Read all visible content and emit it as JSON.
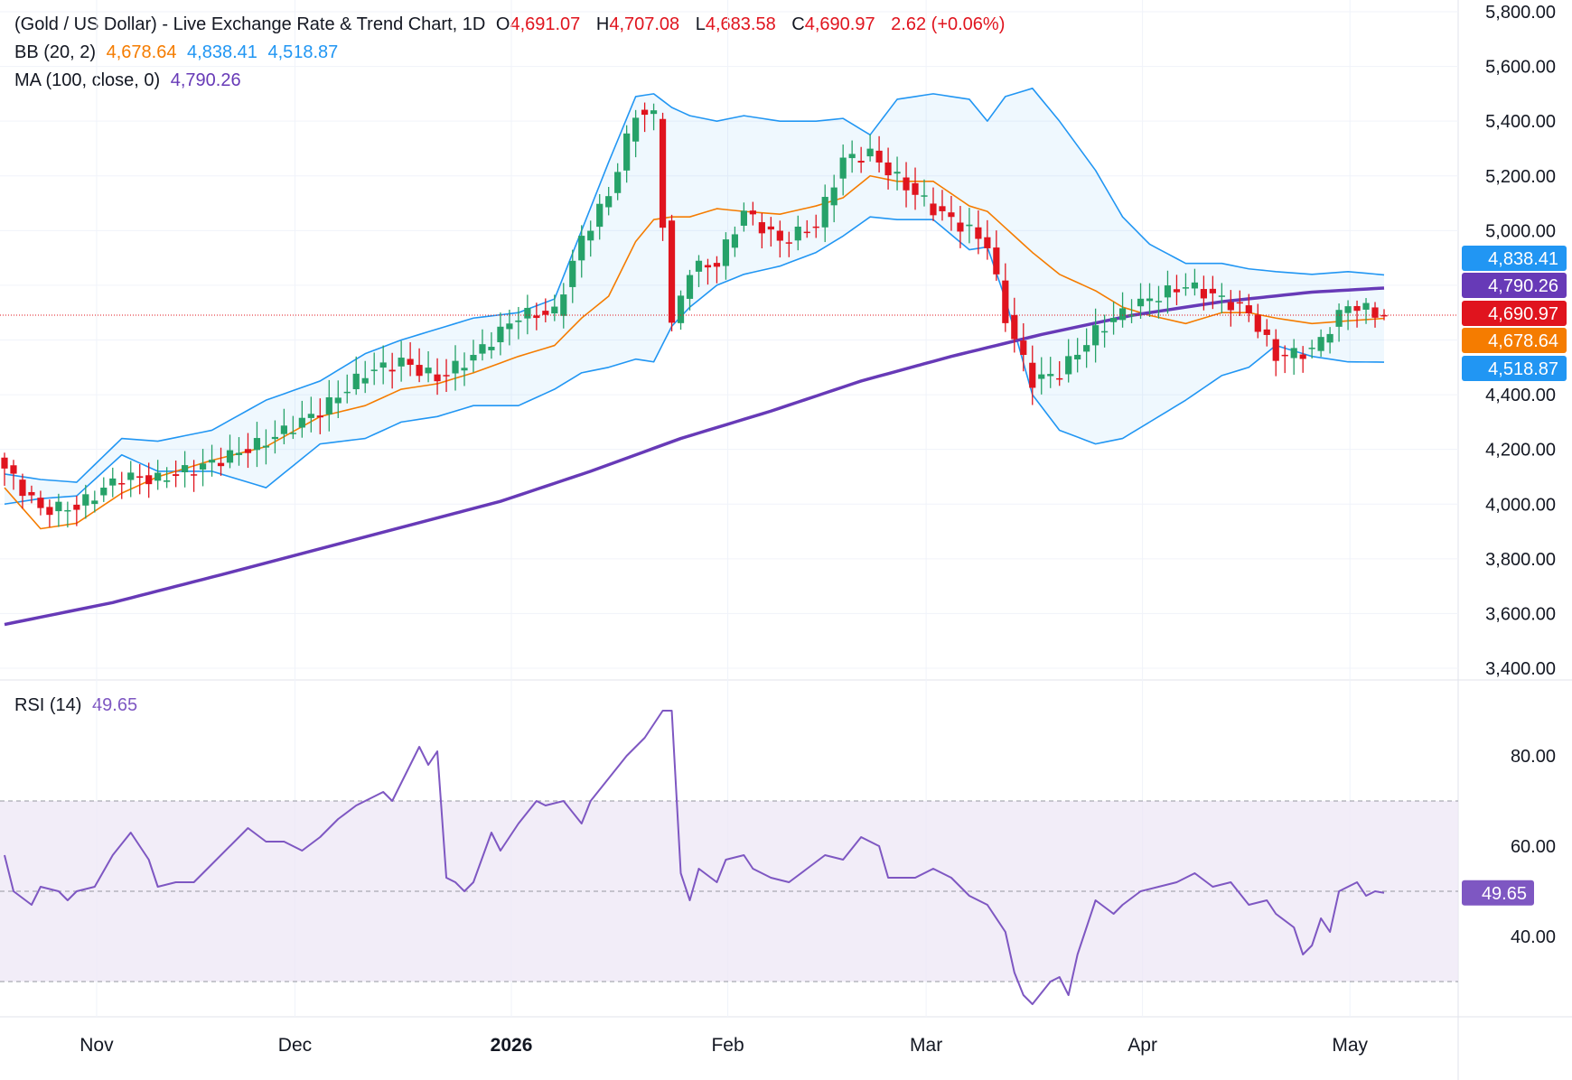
{
  "header": {
    "symbol": "(Gold / US Dollar) - Live Exchange Rate & Trend Chart, 1D",
    "open_label": "O",
    "open": "4,691.07",
    "high_label": "H",
    "high": "4,707.08",
    "low_label": "L",
    "low": "4,683.58",
    "close_label": "C",
    "close": "4,690.97",
    "change": "2.62 (+0.06%)"
  },
  "bb_legend": {
    "label": "BB (20, 2)",
    "basis": "4,678.64",
    "upper": "4,838.41",
    "lower": "4,518.87"
  },
  "ma_legend": {
    "label": "MA (100, close, 0)",
    "value": "4,790.26"
  },
  "rsi_legend": {
    "label": "RSI (14)",
    "value": "49.65"
  },
  "colors": {
    "up": "#26a269",
    "down": "#e0141e",
    "bb_basis": "#f57c00",
    "bb_band": "#2196f3",
    "ma": "#673ab7",
    "rsi": "#7e57c2",
    "rsi_fill": "#ede7f6",
    "last_price": "#e0141e"
  },
  "chart_data": [
    {
      "type": "candlestick",
      "title": "(Gold / US Dollar) - Live Exchange Rate & Trend Chart, 1D",
      "y_ticks": [
        "3,400.00",
        "3,600.00",
        "3,800.00",
        "4,000.00",
        "4,200.00",
        "4,400.00",
        "4,600.00",
        "4,800.00",
        "5,000.00",
        "5,200.00",
        "5,400.00",
        "5,600.00",
        "5,800.00"
      ],
      "y_tick_values": [
        3400,
        3600,
        3800,
        4000,
        4200,
        4400,
        4600,
        4800,
        5000,
        5200,
        5400,
        5600,
        5800
      ],
      "ylim": [
        3390,
        5815
      ],
      "x_ticks": [
        {
          "label": "Nov",
          "day": 4
        },
        {
          "label": "Dec",
          "day": 26
        },
        {
          "label": "2026",
          "day": 50
        },
        {
          "label": "Feb",
          "day": 74
        },
        {
          "label": "Mar",
          "day": 96
        },
        {
          "label": "Apr",
          "day": 120
        },
        {
          "label": "May",
          "day": 143
        }
      ],
      "x_range_days": [
        0,
        158
      ],
      "badges": [
        {
          "label": "4,838.41",
          "value": 4838.41,
          "color": "#2196f3"
        },
        {
          "label": "4,790.26",
          "value": 4790.26,
          "color": "#673ab7"
        },
        {
          "label": "4,690.97",
          "value": 4690.97,
          "color": "#e0141e"
        },
        {
          "label": "4,678.64",
          "value": 4678.64,
          "color": "#f57c00"
        },
        {
          "label": "4,518.87",
          "value": 4518.87,
          "color": "#2196f3"
        }
      ],
      "last_price": 4690.97,
      "anchors": [
        [
          0,
          4170,
          4130,
          4060,
          4110,
          4000
        ],
        [
          4,
          4000,
          3980,
          3910,
          4090,
          4020
        ],
        [
          8,
          4000,
          3990,
          3930,
          4080,
          4030
        ],
        [
          13,
          4200,
          4100,
          4040,
          4240,
          4180
        ],
        [
          17,
          4030,
          4090,
          4100,
          4230,
          4120
        ],
        [
          23,
          4180,
          4150,
          4160,
          4270,
          4120
        ],
        [
          29,
          4170,
          4230,
          4210,
          4380,
          4060
        ],
        [
          35,
          4270,
          4340,
          4320,
          4450,
          4220
        ],
        [
          40,
          4450,
          4480,
          4360,
          4550,
          4240
        ],
        [
          44,
          4550,
          4520,
          4420,
          4600,
          4300
        ],
        [
          48,
          4450,
          4460,
          4440,
          4640,
          4320
        ],
        [
          52,
          4500,
          4540,
          4480,
          4680,
          4360
        ],
        [
          57,
          4600,
          4690,
          4540,
          4700,
          4360
        ],
        [
          61,
          4660,
          4700,
          4580,
          4750,
          4420
        ],
        [
          64,
          4830,
          4970,
          4680,
          5000,
          4480
        ],
        [
          67,
          4980,
          5130,
          4760,
          5250,
          4500
        ],
        [
          70,
          5300,
          5430,
          4960,
          5490,
          4530
        ],
        [
          72,
          5400,
          5420,
          5040,
          5500,
          4520
        ],
        [
          74,
          4650,
          4650,
          5050,
          5450,
          4650
        ],
        [
          76,
          4850,
          4860,
          5050,
          5420,
          4720
        ],
        [
          79,
          4850,
          4880,
          5080,
          5400,
          4800
        ],
        [
          82,
          5060,
          5070,
          5070,
          5420,
          4840
        ],
        [
          86,
          5010,
          4960,
          5060,
          5400,
          4870
        ],
        [
          90,
          4990,
          5020,
          5090,
          5400,
          4920
        ],
        [
          93,
          5200,
          5260,
          5120,
          5410,
          4980
        ],
        [
          96,
          5290,
          5280,
          5200,
          5350,
          5050
        ],
        [
          99,
          5100,
          5190,
          5180,
          5480,
          5040
        ],
        [
          103,
          5220,
          5080,
          5180,
          5500,
          5040
        ],
        [
          107,
          5000,
          5000,
          5090,
          5480,
          4930
        ],
        [
          109,
          4940,
          4950,
          5070,
          5400,
          4940
        ],
        [
          111,
          4650,
          4680,
          5010,
          5490,
          4750
        ],
        [
          114,
          4500,
          4450,
          4920,
          5520,
          4400
        ],
        [
          117,
          4520,
          4480,
          4840,
          5400,
          4270
        ],
        [
          121,
          4640,
          4630,
          4780,
          5220,
          4220
        ],
        [
          124,
          4700,
          4700,
          4720,
          5050,
          4240
        ],
        [
          127,
          4700,
          4750,
          4690,
          4950,
          4300
        ],
        [
          131,
          4780,
          4800,
          4660,
          4880,
          4380
        ],
        [
          135,
          4720,
          4750,
          4700,
          4880,
          4470
        ],
        [
          138,
          4680,
          4700,
          4700,
          4860,
          4500
        ],
        [
          141,
          4560,
          4540,
          4680,
          4850,
          4580
        ],
        [
          145,
          4560,
          4560,
          4660,
          4840,
          4540
        ],
        [
          149,
          4700,
          4730,
          4670,
          4850,
          4520
        ],
        [
          153,
          4690,
          4691,
          4679,
          4838,
          4519
        ]
      ],
      "ma_anchors": [
        [
          0,
          3560
        ],
        [
          12,
          3640
        ],
        [
          25,
          3750
        ],
        [
          40,
          3880
        ],
        [
          55,
          4010
        ],
        [
          65,
          4120
        ],
        [
          75,
          4240
        ],
        [
          85,
          4340
        ],
        [
          95,
          4450
        ],
        [
          105,
          4540
        ],
        [
          115,
          4620
        ],
        [
          125,
          4690
        ],
        [
          135,
          4740
        ],
        [
          145,
          4775
        ],
        [
          153,
          4790
        ]
      ],
      "series": [
        {
          "name": "BB (20, 2)"
        },
        {
          "name": "MA (100, close, 0)"
        }
      ]
    },
    {
      "type": "line",
      "title": "RSI (14)",
      "y_ticks": [
        "40.00",
        "60.00",
        "80.00"
      ],
      "y_tick_values": [
        40,
        60,
        80
      ],
      "ylim": [
        21.5,
        93
      ],
      "bands": [
        30,
        70
      ],
      "midline": 50,
      "current": 49.65,
      "anchors": [
        [
          0,
          58
        ],
        [
          1,
          50
        ],
        [
          3,
          47
        ],
        [
          4,
          51
        ],
        [
          6,
          50
        ],
        [
          7,
          48
        ],
        [
          8,
          50
        ],
        [
          10,
          51
        ],
        [
          12,
          58
        ],
        [
          14,
          63
        ],
        [
          16,
          57
        ],
        [
          17,
          51
        ],
        [
          19,
          52
        ],
        [
          21,
          52
        ],
        [
          23,
          56
        ],
        [
          25,
          60
        ],
        [
          27,
          64
        ],
        [
          29,
          61
        ],
        [
          31,
          61
        ],
        [
          33,
          59
        ],
        [
          35,
          62
        ],
        [
          37,
          66
        ],
        [
          39,
          69
        ],
        [
          40,
          70
        ],
        [
          42,
          72
        ],
        [
          43,
          70
        ],
        [
          45,
          78
        ],
        [
          46,
          82
        ],
        [
          47,
          78
        ],
        [
          48,
          81
        ],
        [
          49,
          53
        ],
        [
          50,
          52
        ],
        [
          51,
          50
        ],
        [
          52,
          52
        ],
        [
          54,
          63
        ],
        [
          55,
          59
        ],
        [
          57,
          65
        ],
        [
          59,
          70
        ],
        [
          60,
          69
        ],
        [
          62,
          70
        ],
        [
          64,
          65
        ],
        [
          65,
          70
        ],
        [
          67,
          75
        ],
        [
          69,
          80
        ],
        [
          71,
          84
        ],
        [
          73,
          90
        ],
        [
          74,
          90
        ],
        [
          75,
          54
        ],
        [
          76,
          48
        ],
        [
          77,
          55
        ],
        [
          79,
          52
        ],
        [
          80,
          57
        ],
        [
          82,
          58
        ],
        [
          83,
          55
        ],
        [
          85,
          53
        ],
        [
          87,
          52
        ],
        [
          89,
          55
        ],
        [
          91,
          58
        ],
        [
          93,
          57
        ],
        [
          95,
          62
        ],
        [
          97,
          60
        ],
        [
          98,
          53
        ],
        [
          101,
          53
        ],
        [
          103,
          55
        ],
        [
          105,
          53
        ],
        [
          107,
          49
        ],
        [
          109,
          47
        ],
        [
          111,
          41
        ],
        [
          112,
          32
        ],
        [
          113,
          27
        ],
        [
          114,
          25
        ],
        [
          116,
          30
        ],
        [
          117,
          31
        ],
        [
          118,
          27
        ],
        [
          119,
          36
        ],
        [
          120,
          42
        ],
        [
          121,
          48
        ],
        [
          123,
          45
        ],
        [
          124,
          47
        ],
        [
          126,
          50
        ],
        [
          128,
          51
        ],
        [
          130,
          52
        ],
        [
          132,
          54
        ],
        [
          134,
          51
        ],
        [
          136,
          52
        ],
        [
          138,
          47
        ],
        [
          140,
          48
        ],
        [
          141,
          45
        ],
        [
          143,
          42
        ],
        [
          144,
          36
        ],
        [
          145,
          38
        ],
        [
          146,
          44
        ],
        [
          147,
          41
        ],
        [
          148,
          50
        ],
        [
          150,
          52
        ],
        [
          151,
          49
        ],
        [
          152,
          50
        ],
        [
          153,
          49.65
        ]
      ]
    }
  ]
}
